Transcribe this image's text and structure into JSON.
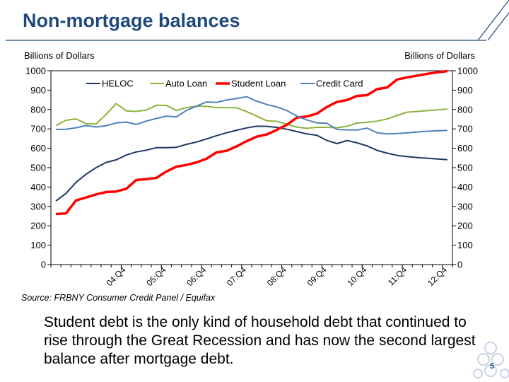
{
  "slide": {
    "title": "Non-mortgage balances",
    "source": "Source: FRBNY Consumer Credit Panel / Equifax",
    "body": "Student debt is the only kind of household debt that continued to rise through the Great Recession and has now the second largest balance after mortgage debt.",
    "page_number": "5",
    "accent_color": "#1f497d"
  },
  "chart_data": {
    "type": "line",
    "ylabel_left": "Billions of Dollars",
    "ylabel_right": "Billions of Dollars",
    "ylim": [
      0,
      1000
    ],
    "yticks": [
      0,
      100,
      200,
      300,
      400,
      500,
      600,
      700,
      800,
      900,
      1000
    ],
    "x": [
      "03:Q1",
      "03:Q2",
      "03:Q3",
      "03:Q4",
      "04:Q1",
      "04:Q2",
      "04:Q3",
      "04:Q4",
      "05:Q1",
      "05:Q2",
      "05:Q3",
      "05:Q4",
      "06:Q1",
      "06:Q2",
      "06:Q3",
      "06:Q4",
      "07:Q1",
      "07:Q2",
      "07:Q3",
      "07:Q4",
      "08:Q1",
      "08:Q2",
      "08:Q3",
      "08:Q4",
      "09:Q1",
      "09:Q2",
      "09:Q3",
      "09:Q4",
      "10:Q1",
      "10:Q2",
      "10:Q3",
      "10:Q4",
      "11:Q1",
      "11:Q2",
      "11:Q3",
      "11:Q4",
      "12:Q1",
      "12:Q2",
      "12:Q3",
      "12:Q4"
    ],
    "xtick_labels": [
      {
        "label": "04:Q4",
        "index": 7
      },
      {
        "label": "05:Q4",
        "index": 11
      },
      {
        "label": "06:Q4",
        "index": 15
      },
      {
        "label": "07:Q4",
        "index": 19
      },
      {
        "label": "08:Q4",
        "index": 23
      },
      {
        "label": "09:Q4",
        "index": 27
      },
      {
        "label": "10:Q4",
        "index": 31
      },
      {
        "label": "11:Q4",
        "index": 35
      },
      {
        "label": "12:Q4",
        "index": 39
      }
    ],
    "legend": "top, inside plot",
    "series": [
      {
        "name": "HELOC",
        "color": "#1f3864",
        "width": 2,
        "values": [
          328,
          367,
          424,
          466,
          500,
          527,
          540,
          565,
          581,
          590,
          603,
          603,
          605,
          620,
          632,
          648,
          665,
          680,
          693,
          705,
          714,
          713,
          708,
          698,
          686,
          674,
          667,
          640,
          624,
          640,
          628,
          612,
          589,
          575,
          563,
          557,
          552,
          548,
          545,
          541
        ]
      },
      {
        "name": "Auto Loan",
        "color": "#8db23f",
        "width": 2,
        "values": [
          717,
          744,
          752,
          727,
          726,
          775,
          831,
          793,
          790,
          797,
          822,
          821,
          795,
          810,
          817,
          816,
          810,
          810,
          809,
          789,
          766,
          742,
          739,
          724,
          709,
          703,
          708,
          708,
          706,
          714,
          730,
          734,
          740,
          751,
          770,
          786,
          790,
          794,
          798,
          802
        ]
      },
      {
        "name": "Student Loan",
        "color": "#ff0000",
        "width": 3.5,
        "values": [
          261,
          264,
          331,
          346,
          362,
          374,
          377,
          391,
          436,
          441,
          447,
          480,
          505,
          514,
          527,
          546,
          579,
          587,
          610,
          637,
          660,
          671,
          695,
          721,
          758,
          764,
          779,
          813,
          839,
          849,
          870,
          874,
          905,
          914,
          955,
          966,
          975,
          984,
          992,
          998
        ]
      },
      {
        "name": "Credit Card",
        "color": "#4f81bd",
        "width": 2,
        "values": [
          697,
          698,
          706,
          717,
          710,
          716,
          731,
          735,
          723,
          740,
          754,
          766,
          762,
          795,
          817,
          839,
          837,
          849,
          857,
          866,
          843,
          826,
          813,
          795,
          766,
          746,
          731,
          729,
          697,
          695,
          694,
          704,
          680,
          674,
          676,
          680,
          684,
          688,
          690,
          692
        ]
      }
    ]
  }
}
